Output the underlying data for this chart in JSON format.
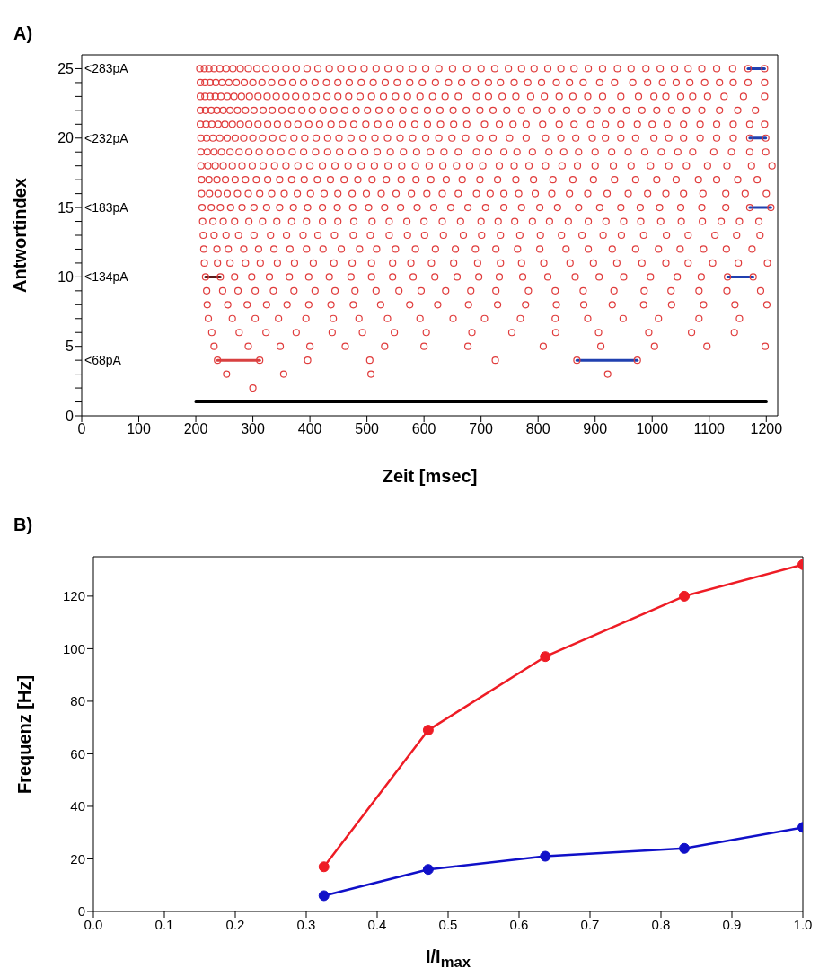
{
  "chart_data": [
    {
      "type": "scatter",
      "title": "A)",
      "xlabel": "Zeit [msec]",
      "ylabel": "Antwortindex",
      "marker": "circle",
      "xlim": [
        0,
        1220
      ],
      "xticks": [
        0,
        100,
        200,
        300,
        400,
        500,
        600,
        700,
        800,
        900,
        1000,
        1100,
        1200
      ],
      "ylim": [
        0,
        26
      ],
      "yticks": [
        0,
        {
          "value": 1,
          "label": null
        },
        {
          "value": 2,
          "label": null
        },
        {
          "value": 3,
          "label": null
        },
        {
          "value": 4,
          "label": null
        },
        5,
        {
          "value": 6,
          "label": null
        },
        {
          "value": 7,
          "label": null
        },
        {
          "value": 8,
          "label": null
        },
        {
          "value": 9,
          "label": null
        },
        10,
        {
          "value": 11,
          "label": null
        },
        {
          "value": 12,
          "label": null
        },
        {
          "value": 13,
          "label": null
        },
        {
          "value": 14,
          "label": null
        },
        15,
        {
          "value": 16,
          "label": null
        },
        {
          "value": 17,
          "label": null
        },
        {
          "value": 18,
          "label": null
        },
        {
          "value": 19,
          "label": null
        },
        20,
        {
          "value": 21,
          "label": null
        },
        {
          "value": 22,
          "label": null
        },
        {
          "value": 23,
          "label": null
        },
        {
          "value": 24,
          "label": null
        },
        25
      ],
      "annotations": [
        "<283pA",
        "<232pA",
        "<183pA",
        "<134pA",
        "<68pA"
      ],
      "series": [
        {
          "type": "line",
          "marker": "none",
          "color": "#000000",
          "x": [
            200,
            1200
          ],
          "values": [
            1,
            1
          ]
        },
        {
          "type": "line",
          "marker": "none",
          "color": "#d84040",
          "x": [
            238,
            312
          ],
          "values": [
            4,
            4
          ]
        },
        {
          "type": "line",
          "marker": "none",
          "color": "#2040b0",
          "x": [
            868,
            974
          ],
          "values": [
            4,
            4
          ]
        },
        {
          "type": "line",
          "marker": "none",
          "color": "#5a1a1a",
          "x": [
            217,
            243
          ],
          "values": [
            10,
            10
          ]
        },
        {
          "type": "line",
          "marker": "none",
          "color": "#2040b0",
          "x": [
            1132,
            1177
          ],
          "values": [
            10,
            10
          ]
        },
        {
          "type": "line",
          "marker": "none",
          "color": "#2040b0",
          "x": [
            1171,
            1208
          ],
          "values": [
            15,
            15
          ]
        },
        {
          "type": "line",
          "marker": "none",
          "color": "#2040b0",
          "x": [
            1171,
            1199
          ],
          "values": [
            20,
            20
          ]
        },
        {
          "type": "line",
          "marker": "none",
          "color": "#2040b0",
          "x": [
            1168,
            1197
          ],
          "values": [
            25,
            25
          ]
        },
        {
          "color": "#e03c3c",
          "x": [
            300
          ],
          "values": [
            2
          ]
        },
        {
          "color": "#e03c3c",
          "x": [
            254,
            354,
            507,
            922
          ],
          "values": [
            3,
            3,
            3,
            3
          ]
        },
        {
          "color": "#e03c3c",
          "x": [
            238,
            312,
            396,
            505,
            725,
            868,
            974
          ],
          "values": [
            4,
            4,
            4,
            4,
            4,
            4,
            4
          ]
        },
        {
          "color": "#e03c3c",
          "x": [
            232,
            292,
            348,
            400,
            462,
            531,
            600,
            677,
            809,
            910,
            1004,
            1096,
            1198
          ],
          "values": [
            5,
            5,
            5,
            5,
            5,
            5,
            5,
            5,
            5,
            5,
            5,
            5,
            5
          ]
        },
        {
          "color": "#e03c3c",
          "x": [
            228,
            276,
            323,
            376,
            439,
            492,
            548,
            604,
            684,
            754,
            831,
            906,
            994,
            1069,
            1144
          ],
          "values": [
            6,
            6,
            6,
            6,
            6,
            6,
            6,
            6,
            6,
            6,
            6,
            6,
            6,
            6,
            6
          ]
        },
        {
          "color": "#e03c3c",
          "x": [
            222,
            264,
            304,
            345,
            393,
            441,
            486,
            536,
            593,
            651,
            706,
            769,
            830,
            887,
            949,
            1011,
            1082,
            1153
          ],
          "values": [
            7,
            7,
            7,
            7,
            7,
            7,
            7,
            7,
            7,
            7,
            7,
            7,
            7,
            7,
            7,
            7,
            7,
            7
          ]
        },
        {
          "color": "#e03c3c",
          "x": [
            220,
            256,
            290,
            324,
            360,
            398,
            437,
            476,
            524,
            575,
            624,
            678,
            729,
            778,
            832,
            880,
            930,
            985,
            1034,
            1090,
            1145,
            1201
          ],
          "values": [
            8,
            8,
            8,
            8,
            8,
            8,
            8,
            8,
            8,
            8,
            8,
            8,
            8,
            8,
            8,
            8,
            8,
            8,
            8,
            8,
            8,
            8
          ]
        },
        {
          "color": "#e03c3c",
          "x": [
            219,
            247,
            274,
            304,
            336,
            372,
            409,
            444,
            479,
            516,
            556,
            595,
            638,
            682,
            726,
            783,
            830,
            879,
            933,
            986,
            1033,
            1082,
            1131,
            1190
          ],
          "values": [
            9,
            9,
            9,
            9,
            9,
            9,
            9,
            9,
            9,
            9,
            9,
            9,
            9,
            9,
            9,
            9,
            9,
            9,
            9,
            9,
            9,
            9,
            9,
            9
          ]
        },
        {
          "color": "#e03c3c",
          "x": [
            217,
            243,
            268,
            298,
            329,
            364,
            398,
            434,
            472,
            508,
            545,
            581,
            619,
            658,
            696,
            732,
            773,
            817,
            865,
            907,
            950,
            997,
            1044,
            1086,
            1132,
            1177
          ],
          "values": [
            10,
            10,
            10,
            10,
            10,
            10,
            10,
            10,
            10,
            10,
            10,
            10,
            10,
            10,
            10,
            10,
            10,
            10,
            10,
            10,
            10,
            10,
            10,
            10,
            10,
            10
          ]
        },
        {
          "color": "#e03c3c",
          "x": [
            215,
            238,
            260,
            287,
            313,
            343,
            373,
            406,
            442,
            474,
            508,
            545,
            577,
            613,
            652,
            694,
            734,
            771,
            810,
            856,
            897,
            938,
            982,
            1024,
            1063,
            1106,
            1151,
            1202
          ],
          "values": [
            11,
            11,
            11,
            11,
            11,
            11,
            11,
            11,
            11,
            11,
            11,
            11,
            11,
            11,
            11,
            11,
            11,
            11,
            11,
            11,
            11,
            11,
            11,
            11,
            11,
            11,
            11,
            11
          ]
        },
        {
          "color": "#e03c3c",
          "x": [
            214,
            237,
            257,
            284,
            310,
            337,
            365,
            394,
            423,
            455,
            487,
            517,
            550,
            585,
            620,
            655,
            690,
            726,
            764,
            803,
            849,
            888,
            930,
            971,
            1011,
            1049,
            1090,
            1130,
            1175
          ],
          "values": [
            12,
            12,
            12,
            12,
            12,
            12,
            12,
            12,
            12,
            12,
            12,
            12,
            12,
            12,
            12,
            12,
            12,
            12,
            12,
            12,
            12,
            12,
            12,
            12,
            12,
            12,
            12,
            12,
            12
          ]
        },
        {
          "color": "#e03c3c",
          "x": [
            213,
            232,
            253,
            275,
            302,
            331,
            359,
            388,
            414,
            443,
            476,
            506,
            539,
            571,
            601,
            634,
            669,
            701,
            734,
            768,
            804,
            841,
            877,
            914,
            946,
            985,
            1025,
            1063,
            1110,
            1148,
            1189
          ],
          "values": [
            13,
            13,
            13,
            13,
            13,
            13,
            13,
            13,
            13,
            13,
            13,
            13,
            13,
            13,
            13,
            13,
            13,
            13,
            13,
            13,
            13,
            13,
            13,
            13,
            13,
            13,
            13,
            13,
            13,
            13,
            13
          ]
        },
        {
          "color": "#e03c3c",
          "x": [
            212,
            230,
            248,
            268,
            293,
            317,
            342,
            368,
            394,
            422,
            449,
            477,
            509,
            539,
            570,
            600,
            632,
            664,
            700,
            730,
            759,
            790,
            820,
            853,
            888,
            919,
            950,
            980,
            1015,
            1051,
            1088,
            1121,
            1153,
            1187
          ],
          "values": [
            14,
            14,
            14,
            14,
            14,
            14,
            14,
            14,
            14,
            14,
            14,
            14,
            14,
            14,
            14,
            14,
            14,
            14,
            14,
            14,
            14,
            14,
            14,
            14,
            14,
            14,
            14,
            14,
            14,
            14,
            14,
            14,
            14,
            14
          ]
        },
        {
          "color": "#e03c3c",
          "x": [
            211,
            227,
            243,
            261,
            281,
            302,
            324,
            347,
            371,
            396,
            422,
            448,
            475,
            503,
            531,
            559,
            588,
            617,
            647,
            677,
            708,
            740,
            771,
            803,
            834,
            871,
            908,
            945,
            979,
            1013,
            1050,
            1087,
            1129,
            1171,
            1208
          ],
          "values": [
            15,
            15,
            15,
            15,
            15,
            15,
            15,
            15,
            15,
            15,
            15,
            15,
            15,
            15,
            15,
            15,
            15,
            15,
            15,
            15,
            15,
            15,
            15,
            15,
            15,
            15,
            15,
            15,
            15,
            15,
            15,
            15,
            15,
            15,
            15
          ]
        },
        {
          "color": "#e03c3c",
          "x": [
            210,
            224,
            239,
            255,
            273,
            292,
            312,
            333,
            355,
            378,
            401,
            425,
            449,
            474,
            499,
            525,
            551,
            578,
            605,
            632,
            660,
            692,
            716,
            740,
            766,
            795,
            824,
            855,
            887,
            921,
            958,
            992,
            1024,
            1055,
            1089,
            1129,
            1163,
            1200
          ],
          "values": [
            16,
            16,
            16,
            16,
            16,
            16,
            16,
            16,
            16,
            16,
            16,
            16,
            16,
            16,
            16,
            16,
            16,
            16,
            16,
            16,
            16,
            16,
            16,
            16,
            16,
            16,
            16,
            16,
            16,
            16,
            16,
            16,
            16,
            16,
            16,
            16,
            16,
            16
          ]
        },
        {
          "color": "#e03c3c",
          "x": [
            210,
            223,
            237,
            252,
            269,
            287,
            306,
            326,
            347,
            368,
            390,
            413,
            436,
            460,
            484,
            509,
            534,
            560,
            586,
            612,
            639,
            667,
            698,
            729,
            761,
            792,
            826,
            861,
            897,
            934,
            971,
            1008,
            1042,
            1081,
            1113,
            1150,
            1184
          ],
          "values": [
            17,
            17,
            17,
            17,
            17,
            17,
            17,
            17,
            17,
            17,
            17,
            17,
            17,
            17,
            17,
            17,
            17,
            17,
            17,
            17,
            17,
            17,
            17,
            17,
            17,
            17,
            17,
            17,
            17,
            17,
            17,
            17,
            17,
            17,
            17,
            17,
            17
          ]
        },
        {
          "color": "#e03c3c",
          "x": [
            209,
            221,
            234,
            248,
            264,
            281,
            299,
            318,
            338,
            358,
            379,
            400,
            422,
            444,
            467,
            490,
            513,
            537,
            561,
            585,
            609,
            633,
            657,
            680,
            703,
            732,
            758,
            784,
            813,
            842,
            869,
            900,
            932,
            963,
            997,
            1029,
            1060,
            1097,
            1131,
            1174,
            1210
          ],
          "values": [
            18,
            18,
            18,
            18,
            18,
            18,
            18,
            18,
            18,
            18,
            18,
            18,
            18,
            18,
            18,
            18,
            18,
            18,
            18,
            18,
            18,
            18,
            18,
            18,
            18,
            18,
            18,
            18,
            18,
            18,
            18,
            18,
            18,
            18,
            18,
            18,
            18,
            18,
            18,
            18,
            18
          ]
        },
        {
          "color": "#e03c3c",
          "x": [
            209,
            220,
            232,
            245,
            260,
            276,
            293,
            311,
            330,
            349,
            369,
            389,
            410,
            431,
            452,
            474,
            496,
            518,
            541,
            564,
            587,
            611,
            635,
            660,
            692,
            713,
            740,
            763,
            790,
            819,
            845,
            871,
            900,
            929,
            958,
            987,
            1016,
            1045,
            1071,
            1108,
            1139,
            1171,
            1199
          ],
          "values": [
            19,
            19,
            19,
            19,
            19,
            19,
            19,
            19,
            19,
            19,
            19,
            19,
            19,
            19,
            19,
            19,
            19,
            19,
            19,
            19,
            19,
            19,
            19,
            19,
            19,
            19,
            19,
            19,
            19,
            19,
            19,
            19,
            19,
            19,
            19,
            19,
            19,
            19,
            19,
            19,
            19,
            19,
            19
          ]
        },
        {
          "color": "#e03c3c",
          "x": [
            209,
            219,
            230,
            242,
            255,
            269,
            284,
            300,
            317,
            335,
            353,
            372,
            391,
            411,
            431,
            451,
            472,
            493,
            514,
            536,
            558,
            580,
            603,
            626,
            649,
            673,
            698,
            721,
            750,
            779,
            813,
            840,
            866,
            895,
            918,
            945,
            971,
            1003,
            1029,
            1055,
            1084,
            1113,
            1142,
            1171,
            1199
          ],
          "values": [
            20,
            20,
            20,
            20,
            20,
            20,
            20,
            20,
            20,
            20,
            20,
            20,
            20,
            20,
            20,
            20,
            20,
            20,
            20,
            20,
            20,
            20,
            20,
            20,
            20,
            20,
            20,
            20,
            20,
            20,
            20,
            20,
            20,
            20,
            20,
            20,
            20,
            20,
            20,
            20,
            20,
            20,
            20,
            20,
            20
          ]
        },
        {
          "color": "#e03c3c",
          "x": [
            208,
            218,
            228,
            239,
            251,
            264,
            278,
            293,
            309,
            326,
            343,
            361,
            379,
            398,
            417,
            437,
            457,
            477,
            498,
            519,
            540,
            562,
            584,
            606,
            629,
            652,
            675,
            706,
            732,
            756,
            779,
            808,
            837,
            863,
            892,
            918,
            945,
            974,
            1000,
            1026,
            1055,
            1084,
            1113,
            1142,
            1171,
            1197
          ],
          "values": [
            21,
            21,
            21,
            21,
            21,
            21,
            21,
            21,
            21,
            21,
            21,
            21,
            21,
            21,
            21,
            21,
            21,
            21,
            21,
            21,
            21,
            21,
            21,
            21,
            21,
            21,
            21,
            21,
            21,
            21,
            21,
            21,
            21,
            21,
            21,
            21,
            21,
            21,
            21,
            21,
            21,
            21,
            21,
            21,
            21,
            21
          ]
        },
        {
          "color": "#e03c3c",
          "x": [
            208,
            217,
            227,
            237,
            248,
            260,
            273,
            287,
            302,
            318,
            334,
            351,
            368,
            386,
            404,
            423,
            442,
            461,
            481,
            501,
            521,
            542,
            563,
            584,
            606,
            628,
            651,
            674,
            698,
            721,
            745,
            771,
            798,
            824,
            850,
            876,
            903,
            929,
            955,
            982,
            1008,
            1034,
            1060,
            1087,
            1118,
            1150,
            1181
          ],
          "values": [
            22,
            22,
            22,
            22,
            22,
            22,
            22,
            22,
            22,
            22,
            22,
            22,
            22,
            22,
            22,
            22,
            22,
            22,
            22,
            22,
            22,
            22,
            22,
            22,
            22,
            22,
            22,
            22,
            22,
            22,
            22,
            22,
            22,
            22,
            22,
            22,
            22,
            22,
            22,
            22,
            22,
            22,
            22,
            22,
            22,
            22,
            22
          ]
        },
        {
          "color": "#e03c3c",
          "x": [
            208,
            216,
            225,
            234,
            244,
            255,
            267,
            280,
            294,
            309,
            325,
            341,
            358,
            375,
            393,
            411,
            430,
            449,
            468,
            488,
            508,
            529,
            550,
            571,
            593,
            615,
            637,
            660,
            692,
            713,
            737,
            761,
            787,
            811,
            837,
            861,
            887,
            913,
            945,
            976,
            1003,
            1024,
            1050,
            1071,
            1097,
            1126,
            1160,
            1197
          ],
          "values": [
            23,
            23,
            23,
            23,
            23,
            23,
            23,
            23,
            23,
            23,
            23,
            23,
            23,
            23,
            23,
            23,
            23,
            23,
            23,
            23,
            23,
            23,
            23,
            23,
            23,
            23,
            23,
            23,
            23,
            23,
            23,
            23,
            23,
            23,
            23,
            23,
            23,
            23,
            23,
            23,
            23,
            23,
            23,
            23,
            23,
            23,
            23,
            23
          ]
        },
        {
          "color": "#e03c3c",
          "x": [
            208,
            216,
            225,
            235,
            246,
            258,
            271,
            285,
            300,
            316,
            333,
            351,
            370,
            389,
            409,
            429,
            449,
            469,
            490,
            511,
            532,
            553,
            575,
            597,
            620,
            643,
            666,
            690,
            713,
            734,
            758,
            782,
            806,
            832,
            855,
            879,
            908,
            934,
            966,
            992,
            1018,
            1042,
            1066,
            1092,
            1118,
            1142,
            1168,
            1197
          ],
          "values": [
            24,
            24,
            24,
            24,
            24,
            24,
            24,
            24,
            24,
            24,
            24,
            24,
            24,
            24,
            24,
            24,
            24,
            24,
            24,
            24,
            24,
            24,
            24,
            24,
            24,
            24,
            24,
            24,
            24,
            24,
            24,
            24,
            24,
            24,
            24,
            24,
            24,
            24,
            24,
            24,
            24,
            24,
            24,
            24,
            24,
            24,
            24,
            24
          ]
        },
        {
          "color": "#e03c3c",
          "x": [
            207,
            215,
            223,
            232,
            242,
            253,
            265,
            278,
            292,
            307,
            323,
            340,
            358,
            376,
            395,
            414,
            434,
            454,
            474,
            495,
            516,
            537,
            558,
            580,
            603,
            626,
            650,
            675,
            700,
            724,
            748,
            771,
            793,
            817,
            840,
            863,
            888,
            913,
            939,
            963,
            989,
            1014,
            1039,
            1063,
            1087,
            1113,
            1141,
            1168,
            1197
          ],
          "values": [
            25,
            25,
            25,
            25,
            25,
            25,
            25,
            25,
            25,
            25,
            25,
            25,
            25,
            25,
            25,
            25,
            25,
            25,
            25,
            25,
            25,
            25,
            25,
            25,
            25,
            25,
            25,
            25,
            25,
            25,
            25,
            25,
            25,
            25,
            25,
            25,
            25,
            25,
            25,
            25,
            25,
            25,
            25,
            25,
            25,
            25,
            25,
            25,
            25
          ]
        }
      ]
    },
    {
      "type": "line",
      "title": "B)",
      "xlabel": "I/I$_{max}$",
      "ylabel": "Frequenz [Hz]",
      "marker": "circle",
      "x": [
        0.325,
        0.472,
        0.637,
        0.833,
        1.0
      ],
      "xlim": [
        0,
        1
      ],
      "xticks": [
        {
          "value": 0,
          "label": "0.0"
        },
        0.1,
        0.2,
        0.3,
        0.4,
        0.5,
        0.6,
        0.7,
        0.8,
        0.9,
        {
          "value": 1,
          "label": "1.0"
        }
      ],
      "ylim": [
        0,
        135
      ],
      "yticks": [
        0,
        20,
        40,
        60,
        80,
        100,
        120
      ],
      "series": [
        {
          "color": "#ee1c25",
          "values": [
            17,
            69,
            97,
            120,
            132
          ]
        },
        {
          "color": "#1010c8",
          "values": [
            6,
            16,
            21,
            24,
            32
          ]
        }
      ]
    }
  ]
}
